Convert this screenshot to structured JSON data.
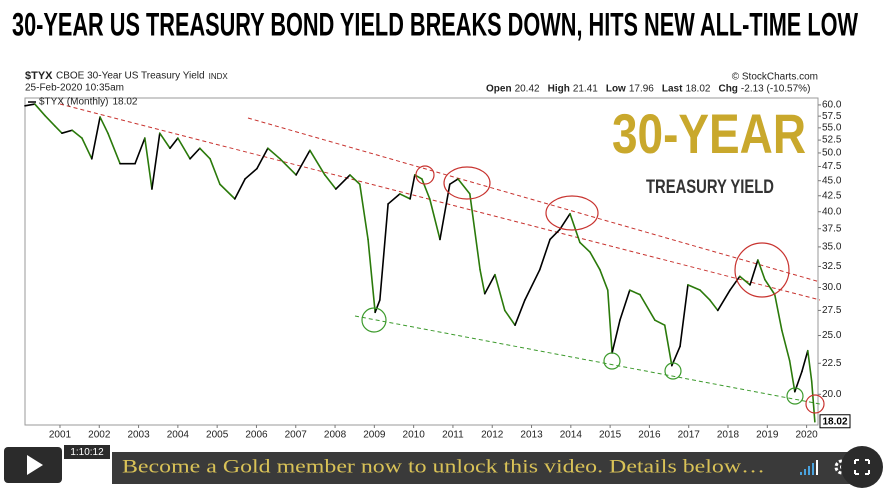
{
  "headline": "30-YEAR US TREASURY BOND YIELD BREAKS DOWN, HITS NEW ALL-TIME LOW",
  "chart_data": {
    "type": "line",
    "symbol": "$TYX",
    "title": "CBOE 30-Year US Treasury Yield",
    "exchange": "INDX",
    "subtitle": "25-Feb-2020 10:35am",
    "source": "© StockCharts.com",
    "quote": [
      {
        "label": "Open",
        "value": "20.42"
      },
      {
        "label": "High",
        "value": "21.41"
      },
      {
        "label": "Low",
        "value": "17.96"
      },
      {
        "label": "Last",
        "value": "18.02"
      },
      {
        "label": "Chg",
        "value": "-2.13 (-10.57%)"
      }
    ],
    "annotations": [
      "30-YEAR",
      "TREASURY YIELD"
    ],
    "annotation_color": "#c9a82c",
    "log_scale": true,
    "grid": false,
    "xlim": [
      2000.11,
      2020.29
    ],
    "xticks": [
      2001,
      2002,
      2003,
      2004,
      2005,
      2006,
      2007,
      2008,
      2009,
      2010,
      2011,
      2012,
      2013,
      2014,
      2015,
      2016,
      2017,
      2018,
      2019,
      2020
    ],
    "ylim": [
      17.8,
      61.6
    ],
    "yticks": [
      {
        "value": 20,
        "label": "20.0"
      },
      {
        "value": 22.5,
        "label": "22.5"
      },
      {
        "value": 25,
        "label": "25.0"
      },
      {
        "value": 27.5,
        "label": "27.5"
      },
      {
        "value": 30,
        "label": "30.0"
      },
      {
        "value": 32.5,
        "label": "32.5"
      },
      {
        "value": 35,
        "label": "35.0"
      },
      {
        "value": 37.5,
        "label": "37.5"
      },
      {
        "value": 40,
        "label": "40.0"
      },
      {
        "value": 42.5,
        "label": "42.5"
      },
      {
        "value": 45,
        "label": "45.0"
      },
      {
        "value": 47.5,
        "label": "47.5"
      },
      {
        "value": 50,
        "label": "50.0"
      },
      {
        "value": 52.5,
        "label": "52.5"
      },
      {
        "value": 55,
        "label": "55.0"
      },
      {
        "value": 57.5,
        "label": "57.5"
      },
      {
        "value": 60,
        "label": "60.0"
      }
    ],
    "x": [
      2000.11,
      2000.36,
      2000.62,
      2000.87,
      2001.05,
      2001.31,
      2001.56,
      2001.81,
      2002.02,
      2002.22,
      2002.53,
      2002.91,
      2003.16,
      2003.34,
      2003.54,
      2003.8,
      2004.0,
      2004.31,
      2004.56,
      2004.82,
      2005.07,
      2005.45,
      2005.71,
      2006.01,
      2006.29,
      2006.6,
      2007.01,
      2007.36,
      2007.74,
      2008.02,
      2008.38,
      2008.63,
      2008.84,
      2009.02,
      2009.14,
      2009.35,
      2009.65,
      2009.91,
      2010.03,
      2010.21,
      2010.41,
      2010.67,
      2010.92,
      2011.13,
      2011.43,
      2011.69,
      2011.81,
      2012.07,
      2012.32,
      2012.58,
      2012.83,
      2013.21,
      2013.47,
      2013.72,
      2013.98,
      2014.23,
      2014.49,
      2014.74,
      2014.94,
      2015.05,
      2015.25,
      2015.5,
      2015.76,
      2016.14,
      2016.39,
      2016.57,
      2016.78,
      2016.98,
      2017.29,
      2017.54,
      2017.74,
      2018.05,
      2018.3,
      2018.56,
      2018.76,
      2018.94,
      2019.19,
      2019.37,
      2019.57,
      2019.7,
      2019.88,
      2020.03,
      2020.13,
      2020.21
    ],
    "series": [
      {
        "name": "$TYX (Monthly)",
        "color": "#2b7a0b",
        "up_color": "#000000",
        "values": [
          59.8,
          60.2,
          57.6,
          55.4,
          53.9,
          54.5,
          52.9,
          48.9,
          57.3,
          53.9,
          48.0,
          48.0,
          52.9,
          43.6,
          53.9,
          50.9,
          52.9,
          48.9,
          50.9,
          48.9,
          44.4,
          42.0,
          45.3,
          47.1,
          50.9,
          48.9,
          46.0,
          50.5,
          46.0,
          43.6,
          46.0,
          44.4,
          36.0,
          27.3,
          28.6,
          41.2,
          42.8,
          42.0,
          46.0,
          45.3,
          42.0,
          36.0,
          44.4,
          45.3,
          42.8,
          32.1,
          29.3,
          31.5,
          27.5,
          26.0,
          28.6,
          32.1,
          36.0,
          37.4,
          39.7,
          35.6,
          34.3,
          32.1,
          29.7,
          23.4,
          26.5,
          29.7,
          29.2,
          26.5,
          26.0,
          22.3,
          24.0,
          30.3,
          29.7,
          28.6,
          27.5,
          29.7,
          31.3,
          30.3,
          33.3,
          30.9,
          29.2,
          25.5,
          22.7,
          20.2,
          21.8,
          23.6,
          21.0,
          18.02
        ]
      }
    ]
  },
  "player": {
    "time": "1:10:12",
    "message": "Become a Gold member now to unlock this video. Details below…"
  }
}
